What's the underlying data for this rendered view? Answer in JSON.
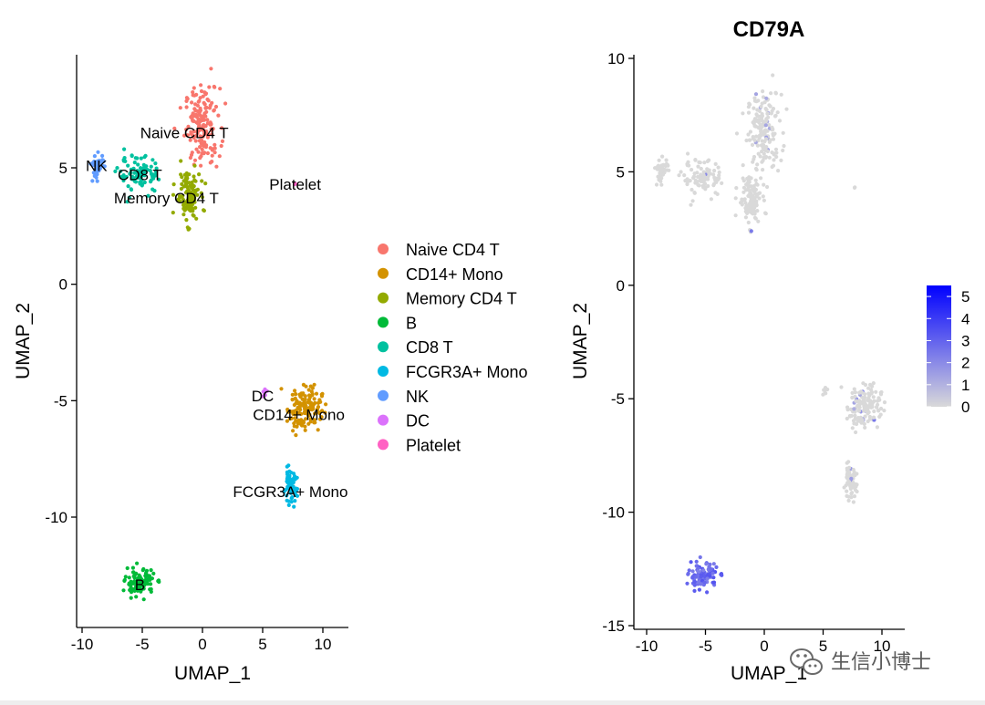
{
  "chart_data": [
    {
      "type": "scatter",
      "title": "",
      "xlabel": "UMAP_1",
      "ylabel": "UMAP_2",
      "xlim": [
        -10.5,
        12
      ],
      "ylim": [
        -14.5,
        10
      ],
      "x_ticks": [
        -10,
        -5,
        0,
        5,
        10
      ],
      "x_tick_labels": [
        "-10",
        "-5",
        "0",
        "5",
        "10"
      ],
      "y_ticks": [
        -10,
        -5,
        0,
        5
      ],
      "y_tick_labels": [
        "-10",
        "-5",
        "0",
        "5"
      ],
      "grid": false,
      "legend_position": "right",
      "series": [
        {
          "name": "Naive CD4 T",
          "color": "#F8766D",
          "center": [
            0,
            6.8
          ],
          "spread": [
            1.3,
            1.5
          ],
          "n": 170,
          "label": "Naive CD4 T",
          "label_at": [
            -1.5,
            6.5
          ]
        },
        {
          "name": "CD14+ Mono",
          "color": "#D39200",
          "center": [
            8.5,
            -5.3
          ],
          "spread": [
            1.3,
            0.9
          ],
          "n": 140,
          "label": "CD14+ Mono",
          "label_at": [
            8,
            -5.6
          ]
        },
        {
          "name": "Memory CD4 T",
          "color": "#93AA00",
          "center": [
            -1.2,
            3.8
          ],
          "spread": [
            0.9,
            1.0
          ],
          "n": 120,
          "label": "Memory CD4 T",
          "label_at": [
            -3,
            3.7
          ]
        },
        {
          "name": "B",
          "color": "#00BA38",
          "center": [
            -5.2,
            -12.8
          ],
          "spread": [
            1.1,
            0.5
          ],
          "n": 110,
          "label": "B",
          "label_at": [
            -5.2,
            -12.9
          ]
        },
        {
          "name": "CD8 T",
          "color": "#00C19F",
          "center": [
            -5.2,
            4.7
          ],
          "spread": [
            1.6,
            0.7
          ],
          "n": 90,
          "label": "CD8 T",
          "label_at": [
            -5.2,
            4.7
          ]
        },
        {
          "name": "FCGR3A+ Mono",
          "color": "#00B9E3",
          "center": [
            7.3,
            -8.7
          ],
          "spread": [
            0.5,
            0.6
          ],
          "n": 70,
          "label": "FCGR3A+ Mono",
          "label_at": [
            7.3,
            -8.9
          ]
        },
        {
          "name": "NK",
          "color": "#619CFF",
          "center": [
            -8.7,
            5.1
          ],
          "spread": [
            0.5,
            0.5
          ],
          "n": 45,
          "label": "NK",
          "label_at": [
            -8.8,
            5.1
          ]
        },
        {
          "name": "DC",
          "color": "#DB72FB",
          "center": [
            5.2,
            -4.7
          ],
          "spread": [
            0.2,
            0.15
          ],
          "n": 8,
          "label": "DC",
          "label_at": [
            5,
            -4.8
          ]
        },
        {
          "name": "Platelet",
          "color": "#FF61C3",
          "center": [
            7.7,
            4.3
          ],
          "spread": [
            0.1,
            0.08
          ],
          "n": 2,
          "label": "Platelet",
          "label_at": [
            7.7,
            4.3
          ]
        }
      ]
    },
    {
      "type": "scatter",
      "title": "CD79A",
      "xlabel": "UMAP_1",
      "ylabel": "UMAP_2",
      "xlim": [
        -10.5,
        12
      ],
      "ylim": [
        -15,
        10
      ],
      "x_ticks": [
        -10,
        -5,
        0,
        5,
        10
      ],
      "x_tick_labels": [
        "-10",
        "-5",
        "0",
        "5",
        "10"
      ],
      "y_ticks": [
        -15,
        -10,
        -5,
        0,
        5,
        10
      ],
      "y_tick_labels": [
        "-15",
        "-10",
        "-5",
        "0",
        "5",
        "10"
      ],
      "grid": false,
      "legend_position": "right",
      "colorbar": {
        "min": 0,
        "max": 5.5,
        "low_color": "#D9D9D9",
        "high_color": "#0000FF",
        "ticks": [
          0,
          1,
          2,
          3,
          4,
          5
        ],
        "tick_labels": [
          "0",
          "1",
          "2",
          "3",
          "4",
          "5"
        ]
      },
      "high_cluster": {
        "name": "B",
        "center": [
          -5.2,
          -12.8
        ],
        "spread": [
          1.1,
          0.5
        ],
        "n": 110,
        "expression": 2.8
      }
    }
  ],
  "watermark": {
    "text": "生信小博士",
    "icon": "wechat-icon"
  }
}
